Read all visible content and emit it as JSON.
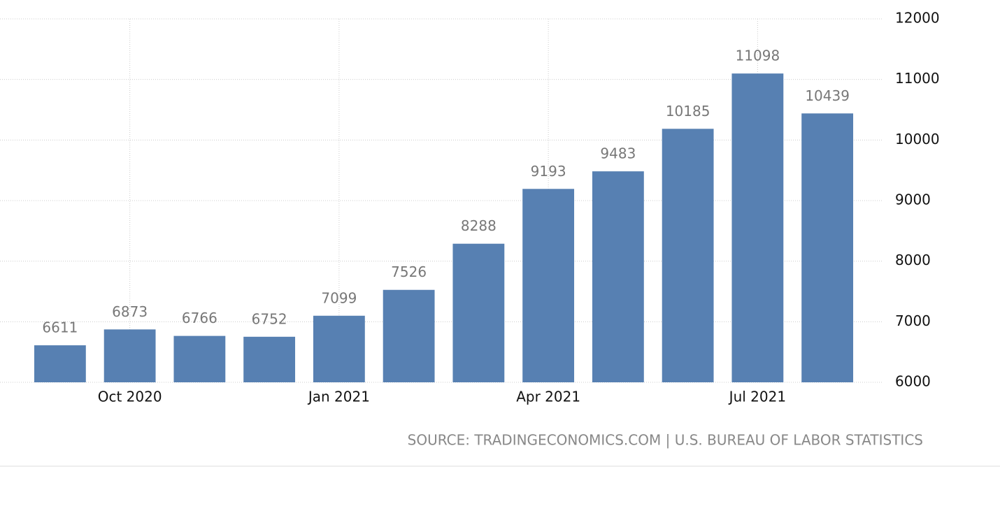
{
  "chart_data": {
    "type": "bar",
    "categories": [
      null,
      "Oct 2020",
      null,
      null,
      "Jan 2021",
      null,
      null,
      "Apr 2021",
      null,
      null,
      "Jul 2021",
      null
    ],
    "values": [
      6611,
      6873,
      6766,
      6752,
      7099,
      7526,
      8288,
      9193,
      9483,
      10185,
      11098,
      10439
    ],
    "color": "#5780b2",
    "ylim": [
      6000,
      12000
    ],
    "yticks": [
      6000,
      7000,
      8000,
      9000,
      10000,
      11000,
      12000
    ],
    "grid": true,
    "source": "SOURCE: TRADINGECONOMICS.COM | U.S. BUREAU OF LABOR STATISTICS"
  }
}
